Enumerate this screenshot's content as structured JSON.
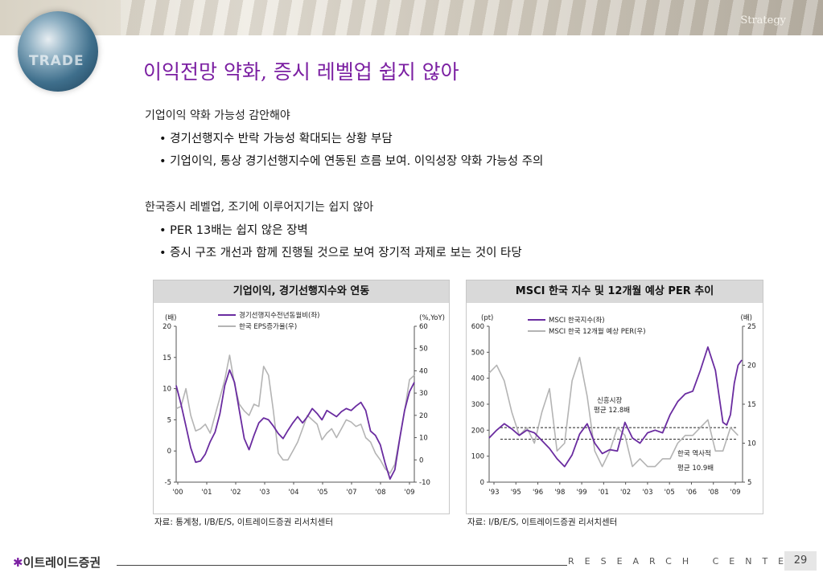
{
  "header": {
    "section": "Strategy",
    "watermark": "TRADE"
  },
  "title": "이익전망 약화, 증시 레벨업 쉽지 않아",
  "sections": [
    {
      "heading": "기업이익 약화 가능성 감안해야",
      "bullets": [
        "• 경기선행지수 반락 가능성 확대되는 상황 부담",
        "• 기업이익, 통상 경기선행지수에 연동된 흐름 보여. 이익성장 약화 가능성 주의"
      ]
    },
    {
      "heading": "한국증시 레벨업, 조기에 이루어지기는 쉽지 않아",
      "bullets": [
        "• PER 13배는 쉽지 않은 장벽",
        "• 증시 구조 개선과 함께 진행될 것으로 보여 장기적 과제로 보는 것이 타당"
      ]
    }
  ],
  "chart_data": [
    {
      "type": "line",
      "title": "기업이익, 경기선행지수와 연동",
      "left_unit": "(배)",
      "right_unit": "(%,YoY)",
      "x_ticks": [
        "'00",
        "'01",
        "'02",
        "'03",
        "'04",
        "'05",
        "'07",
        "'08",
        "'09"
      ],
      "y_left": {
        "min": -5,
        "max": 20,
        "ticks": [
          "20",
          "15",
          "10",
          "5",
          "0",
          "-5"
        ]
      },
      "y_right": {
        "min": -10,
        "max": 60,
        "ticks": [
          "60",
          "50",
          "40",
          "30",
          "20",
          "10",
          "0",
          "-10"
        ]
      },
      "series": [
        {
          "name": "경기선행지수전년동월비(좌)",
          "axis": "left",
          "color": "#6a2ca0",
          "x": [
            2000.0,
            2000.2,
            2000.4,
            2000.6,
            2000.8,
            2001.0,
            2001.2,
            2001.4,
            2001.6,
            2001.8,
            2002.0,
            2002.2,
            2002.4,
            2002.6,
            2002.8,
            2003.0,
            2003.2,
            2003.4,
            2003.6,
            2003.8,
            2004.0,
            2004.2,
            2004.4,
            2004.6,
            2004.8,
            2005.0,
            2005.2,
            2005.4,
            2005.6,
            2005.8,
            2006.0,
            2006.2,
            2006.4,
            2006.6,
            2006.8,
            2007.0,
            2007.2,
            2007.4,
            2007.6,
            2007.8,
            2008.0,
            2008.2,
            2008.4,
            2008.6,
            2008.8,
            2009.0,
            2009.2,
            2009.4,
            2009.6,
            2009.8
          ],
          "values": [
            10.5,
            7.5,
            4,
            0.5,
            -1.8,
            -1.6,
            -0.5,
            1.5,
            3,
            6,
            10.5,
            13,
            11,
            6.5,
            2,
            0.2,
            2.5,
            4.5,
            5.3,
            5,
            4,
            2.8,
            2,
            3.3,
            4.5,
            5.5,
            4.5,
            5.5,
            6.8,
            6,
            5,
            6.5,
            6,
            5.5,
            6.3,
            6.8,
            6.5,
            7.2,
            7.8,
            6.5,
            3.2,
            2.5,
            1,
            -2,
            -4.5,
            -3,
            2,
            6.5,
            9.5,
            11
          ]
        },
        {
          "name": "한국 EPS증가율(우)",
          "axis": "right",
          "color": "#b4b4b4",
          "x": [
            2000.0,
            2000.2,
            2000.4,
            2000.6,
            2000.8,
            2001.0,
            2001.2,
            2001.4,
            2001.6,
            2001.8,
            2002.0,
            2002.2,
            2002.4,
            2002.6,
            2002.8,
            2003.0,
            2003.2,
            2003.4,
            2003.6,
            2003.8,
            2004.0,
            2004.2,
            2004.4,
            2004.6,
            2004.8,
            2005.0,
            2005.2,
            2005.4,
            2005.6,
            2005.8,
            2006.0,
            2006.2,
            2006.4,
            2006.6,
            2006.8,
            2007.0,
            2007.2,
            2007.4,
            2007.6,
            2007.8,
            2008.0,
            2008.2,
            2008.4,
            2008.6,
            2008.8,
            2009.0,
            2009.2,
            2009.4,
            2009.6,
            2009.8
          ],
          "values": [
            23,
            24,
            32,
            20,
            13,
            14,
            16,
            12,
            20,
            28,
            36,
            47,
            34,
            25,
            22,
            20,
            25,
            24,
            42,
            38,
            22,
            3,
            0,
            0,
            4,
            8,
            14,
            20,
            18,
            16,
            9,
            12,
            14,
            10,
            14,
            18,
            17,
            15,
            16,
            10,
            8,
            3,
            0,
            -4,
            -6,
            -2,
            10,
            22,
            36,
            38
          ]
        }
      ]
    },
    {
      "type": "line",
      "title": "MSCI 한국 지수 및 12개월 예상 PER 추이",
      "left_unit": "(pt)",
      "right_unit": "(배)",
      "x_ticks": [
        "'93",
        "'95",
        "'96",
        "'98",
        "'99",
        "'01",
        "'02",
        "'03",
        "'05",
        "'06",
        "'08",
        "'09"
      ],
      "y_left": {
        "min": 0,
        "max": 600,
        "ticks": [
          "600",
          "500",
          "400",
          "300",
          "200",
          "100",
          "0"
        ]
      },
      "y_right": {
        "min": 5,
        "max": 25,
        "ticks": [
          "25",
          "20",
          "15",
          "10",
          "5"
        ]
      },
      "series": [
        {
          "name": "MSCI 한국지수(좌)",
          "axis": "left",
          "color": "#6a2ca0",
          "x": [
            1993,
            1993.5,
            1994,
            1994.5,
            1995,
            1995.5,
            1996,
            1996.5,
            1997,
            1997.5,
            1998,
            1998.5,
            1999,
            1999.5,
            2000,
            2000.5,
            2001,
            2001.5,
            2002,
            2002.5,
            2003,
            2003.5,
            2004,
            2004.5,
            2005,
            2005.5,
            2006,
            2006.5,
            2007,
            2007.5,
            2008,
            2008.25,
            2008.5,
            2008.75,
            2009,
            2009.25,
            2009.5,
            2009.75
          ],
          "values": [
            170,
            200,
            225,
            205,
            180,
            200,
            190,
            160,
            130,
            90,
            60,
            105,
            185,
            225,
            150,
            110,
            125,
            120,
            230,
            170,
            150,
            190,
            200,
            190,
            260,
            310,
            340,
            350,
            430,
            520,
            430,
            330,
            230,
            220,
            260,
            380,
            450,
            470
          ]
        },
        {
          "name": "MSCI 한국 12개월 예상 PER(우)",
          "axis": "right",
          "color": "#b4b4b4",
          "x": [
            1993,
            1993.5,
            1994,
            1994.5,
            1995,
            1995.5,
            1996,
            1996.5,
            1997,
            1997.5,
            1998,
            1998.5,
            1999,
            1999.5,
            2000,
            2000.5,
            2001,
            2001.5,
            2002,
            2002.5,
            2003,
            2003.5,
            2004,
            2004.5,
            2005,
            2005.5,
            2006,
            2006.5,
            2007,
            2007.5,
            2008,
            2008.5,
            2009,
            2009.5
          ],
          "values": [
            19,
            20,
            18,
            14,
            11,
            12,
            10,
            14,
            17,
            9,
            10,
            18,
            21,
            16,
            9,
            7,
            9,
            12,
            11,
            7,
            8,
            7,
            7,
            8,
            8,
            10,
            11,
            11,
            12,
            13,
            9,
            9,
            12,
            11
          ]
        }
      ],
      "reference_lines": [
        {
          "axis": "left",
          "value": 210,
          "label": "신흥시장\n평균 12.8배"
        },
        {
          "axis": "left",
          "value": 165,
          "label": "한국 역사적\n평균 10.9배"
        }
      ],
      "annotations": [
        "신흥시장",
        "평균 12.8배",
        "한국 역사적",
        "평균 10.9배"
      ]
    }
  ],
  "sources": [
    "자료: 통계청, I/B/E/S, 이트레이드증권 리서치센터",
    "자료: I/B/E/S, 이트레이드증권 리서치센터"
  ],
  "footer": {
    "brand": "이트레이드증권",
    "brand_mark": "✱",
    "research": "RESEARCH CENTER",
    "page": "29"
  },
  "colors": {
    "title": "#7b1fa2",
    "series_dark": "#6a2ca0",
    "series_light": "#b4b4b4",
    "panel_header": "#d9d9d9"
  }
}
